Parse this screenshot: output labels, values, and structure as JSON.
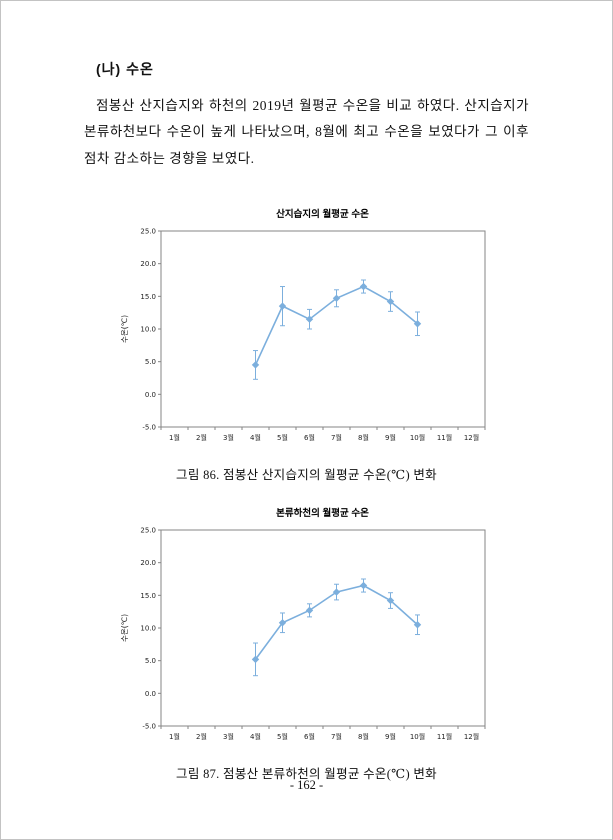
{
  "page": {
    "heading": "(나) 수온",
    "paragraph": "점봉산 산지습지와 하천의 2019년 월평균 수온을 비교 하였다. 산지습지가 본류하천보다 수온이 높게 나타났으며, 8월에 최고 수온을 보였다가 그 이후 점차 감소하는 경향을 보였다.",
    "page_number": "- 162 -"
  },
  "colors": {
    "series_blue": "#7cafdd",
    "axis_gray": "#858585",
    "text": "#222222"
  },
  "chart_data": [
    {
      "type": "line",
      "title": "산지습지의 월평균 수온",
      "caption": "그림 86. 점봉산 산지습지의 월평균 수온(℃) 변화",
      "xlabel": "",
      "ylabel": "수온(℃)",
      "categories": [
        "1월",
        "2월",
        "3월",
        "4월",
        "5월",
        "6월",
        "7월",
        "8월",
        "9월",
        "10월",
        "11월",
        "12월"
      ],
      "ylim": [
        -5.0,
        25.0
      ],
      "ytick_step": 5.0,
      "grid": false,
      "legend": "none",
      "series": [
        {
          "name": "산지습지",
          "x": [
            "4월",
            "5월",
            "6월",
            "7월",
            "8월",
            "9월",
            "10월"
          ],
          "values": [
            4.5,
            13.5,
            11.5,
            14.7,
            16.5,
            14.2,
            10.8
          ],
          "error": [
            2.2,
            3.0,
            1.5,
            1.3,
            1.0,
            1.5,
            1.8
          ]
        }
      ]
    },
    {
      "type": "line",
      "title": "본류하천의 월평균 수온",
      "caption": "그림 87. 점봉산 본류하천의 월평균 수온(℃) 변화",
      "xlabel": "",
      "ylabel": "수온(℃)",
      "categories": [
        "1월",
        "2월",
        "3월",
        "4월",
        "5월",
        "6월",
        "7월",
        "8월",
        "9월",
        "10월",
        "11월",
        "12월"
      ],
      "ylim": [
        -5.0,
        25.0
      ],
      "ytick_step": 5.0,
      "grid": false,
      "legend": "none",
      "series": [
        {
          "name": "본류하천",
          "x": [
            "4월",
            "5월",
            "6월",
            "7월",
            "8월",
            "9월",
            "10월"
          ],
          "values": [
            5.2,
            10.8,
            12.7,
            15.5,
            16.5,
            14.2,
            10.5
          ],
          "error": [
            2.5,
            1.5,
            1.0,
            1.2,
            1.0,
            1.2,
            1.5
          ]
        }
      ]
    }
  ]
}
